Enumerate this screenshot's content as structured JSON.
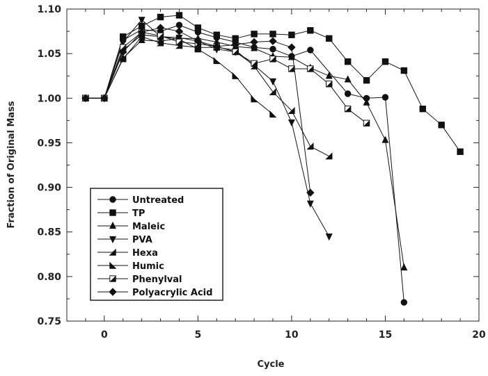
{
  "chart_data": {
    "type": "line",
    "xlabel": "Cycle",
    "ylabel": "Fraction of Original Mass",
    "xlim": [
      -2,
      20
    ],
    "ylim": [
      0.75,
      1.1
    ],
    "x_ticks": [
      0,
      5,
      10,
      15,
      20
    ],
    "x_tick_labels": [
      "0",
      "5",
      "10",
      "15",
      "20"
    ],
    "y_ticks": [
      0.75,
      0.8,
      0.85,
      0.9,
      0.95,
      1.0,
      1.05,
      1.1
    ],
    "y_tick_labels": [
      "0.75",
      "0.80",
      "0.85",
      "0.90",
      "0.95",
      "1.00",
      "1.05",
      "1.10"
    ],
    "grid": false,
    "legend_position": "bottom-left",
    "series": [
      {
        "name": "Untreated",
        "marker": "circle",
        "x": [
          -1,
          0,
          1,
          2,
          3,
          4,
          5,
          6,
          7,
          8,
          9,
          10,
          11,
          13,
          14,
          15,
          16
        ],
        "y": [
          1.0,
          1.0,
          1.065,
          1.077,
          1.075,
          1.082,
          1.074,
          1.068,
          1.063,
          1.057,
          1.055,
          1.047,
          1.054,
          1.005,
          1.0,
          1.001,
          0.771
        ]
      },
      {
        "name": "TP",
        "marker": "square",
        "x": [
          -1,
          0,
          1,
          2,
          3,
          4,
          5,
          6,
          7,
          8,
          9,
          10,
          11,
          12,
          13,
          14,
          15,
          16,
          17,
          18,
          19
        ],
        "y": [
          1.0,
          1.0,
          1.069,
          1.081,
          1.091,
          1.093,
          1.079,
          1.071,
          1.067,
          1.072,
          1.072,
          1.071,
          1.076,
          1.067,
          1.041,
          1.02,
          1.041,
          1.031,
          0.988,
          0.97,
          0.94
        ]
      },
      {
        "name": "Maleic",
        "marker": "triangle-up",
        "x": [
          -1,
          0,
          1,
          2,
          3,
          4,
          5,
          6,
          7,
          8,
          9,
          10,
          11,
          12,
          13,
          14,
          15,
          16
        ],
        "y": [
          1.0,
          1.0,
          1.045,
          1.065,
          1.064,
          1.067,
          1.067,
          1.063,
          1.058,
          1.056,
          1.047,
          1.046,
          1.034,
          1.025,
          1.021,
          0.995,
          0.953,
          0.81
        ]
      },
      {
        "name": "PVA",
        "marker": "triangle-down",
        "x": [
          -1,
          0,
          1,
          2,
          3,
          4,
          5,
          6,
          7,
          8,
          9,
          10,
          11,
          12
        ],
        "y": [
          1.0,
          1.0,
          1.063,
          1.088,
          1.069,
          1.068,
          1.064,
          1.055,
          1.052,
          1.037,
          1.019,
          0.973,
          0.882,
          0.845
        ]
      },
      {
        "name": "Hexa",
        "marker": "triangle-left",
        "x": [
          -1,
          0,
          1,
          2,
          3,
          4,
          5,
          6,
          7,
          8,
          9,
          10,
          11,
          12
        ],
        "y": [
          1.0,
          1.0,
          1.044,
          1.069,
          1.062,
          1.059,
          1.057,
          1.057,
          1.054,
          1.036,
          1.007,
          0.986,
          0.946,
          0.935
        ]
      },
      {
        "name": "Humic",
        "marker": "triangle-right",
        "x": [
          -1,
          0,
          1,
          2,
          3,
          4,
          5,
          6,
          7,
          8,
          9
        ],
        "y": [
          1.0,
          1.0,
          1.054,
          1.071,
          1.069,
          1.066,
          1.055,
          1.042,
          1.025,
          0.999,
          0.982
        ]
      },
      {
        "name": "Phenylval",
        "marker": "half-square",
        "x": [
          -1,
          0,
          1,
          2,
          3,
          4,
          5,
          6,
          7,
          8,
          9,
          10,
          11,
          12,
          13,
          14
        ],
        "y": [
          1.0,
          1.0,
          1.057,
          1.074,
          1.07,
          1.063,
          1.061,
          1.058,
          1.052,
          1.039,
          1.044,
          1.033,
          1.033,
          1.016,
          0.988,
          0.972
        ]
      },
      {
        "name": "Polyacrylic Acid",
        "marker": "diamond",
        "x": [
          -1,
          0,
          1,
          2,
          3,
          4,
          5,
          6,
          7,
          8,
          9,
          10,
          11
        ],
        "y": [
          1.0,
          1.0,
          1.052,
          1.074,
          1.079,
          1.075,
          1.064,
          1.058,
          1.06,
          1.063,
          1.064,
          1.057,
          0.894
        ]
      }
    ]
  }
}
